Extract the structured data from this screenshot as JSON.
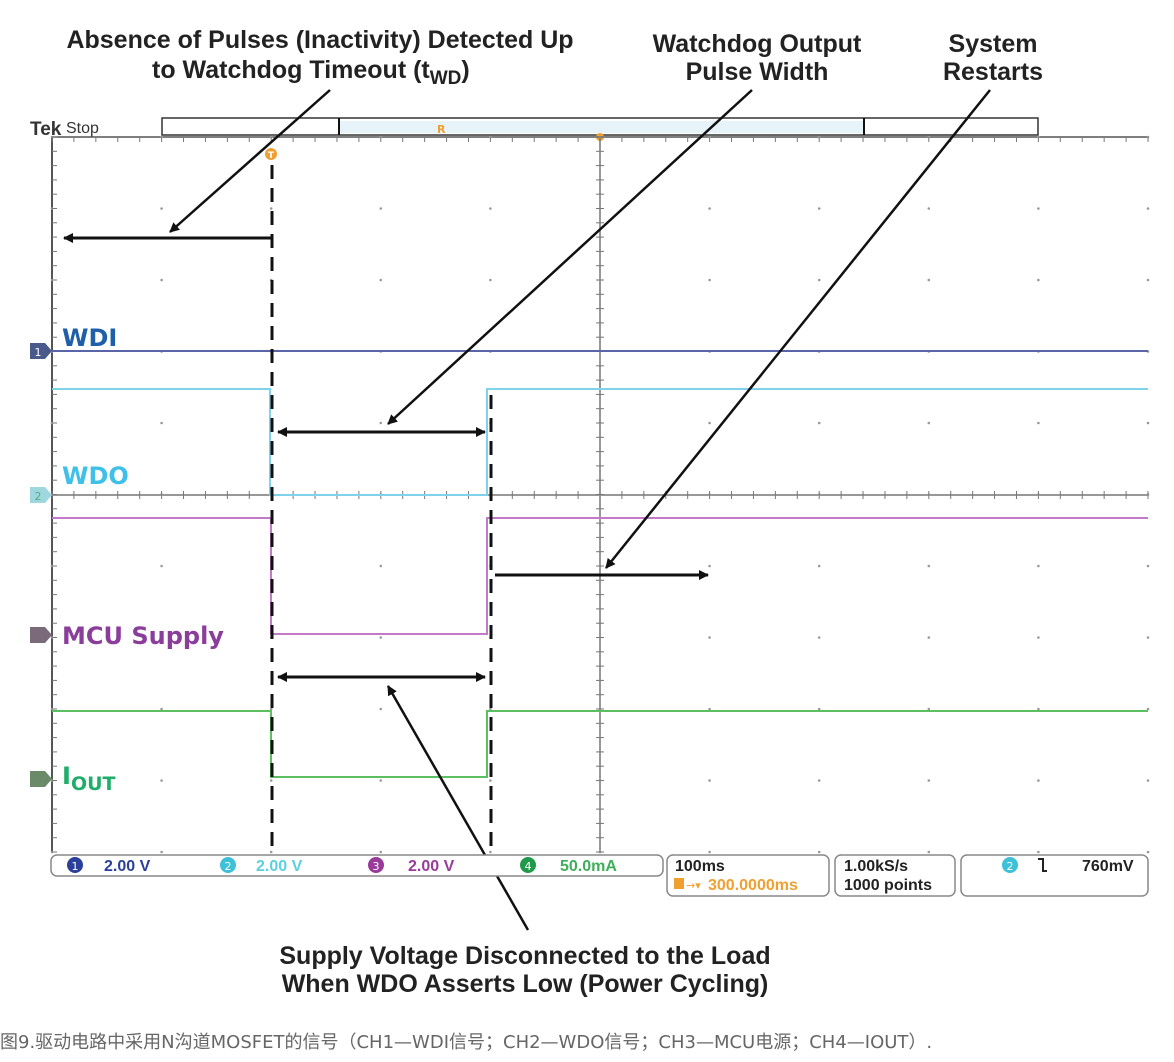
{
  "annotations": {
    "inactivity_line1": "Absence of Pulses (Inactivity) Detected Up",
    "inactivity_line2": "to Watchdog Timeout (t",
    "inactivity_sub": "WD",
    "inactivity_end": ")",
    "pulse_width_line1": "Watchdog Output",
    "pulse_width_line2": "Pulse Width",
    "restart_line1": "System",
    "restart_line2": "Restarts",
    "supply_line1": "Supply Voltage Disconnected to the Load",
    "supply_line2": "When WDO Asserts Low (Power Cycling)"
  },
  "scope": {
    "brand": "Tek",
    "state": "Stop",
    "trigger_marker": "T",
    "record_marker": "R"
  },
  "channels": [
    {
      "num": "1",
      "label": "WDI",
      "scale": "2.00 V",
      "color": "#2b3f9a"
    },
    {
      "num": "2",
      "label": "WDO",
      "scale": "2.00 V",
      "color": "#3ec0d8"
    },
    {
      "num": "3",
      "label": "MCU Supply",
      "scale": "2.00 V",
      "color": "#9a3a9a"
    },
    {
      "num": "4",
      "label": "I",
      "label_sub": "OUT",
      "scale": "50.0mA",
      "color": "#2fae4a"
    }
  ],
  "status": {
    "timebase": "100ms",
    "trigger_position": "300.0000ms",
    "sample_rate": "1.00kS/s",
    "record_length": "1000 points",
    "trigger_channel": "2",
    "trigger_slope": "falling",
    "trigger_level": "760mV"
  },
  "caption": "图9.驱动电路中采用N沟道MOSFET的信号（CH1—WDI信号；CH2—WDO信号；CH3—MCU电源；CH4—IOUT）."
}
